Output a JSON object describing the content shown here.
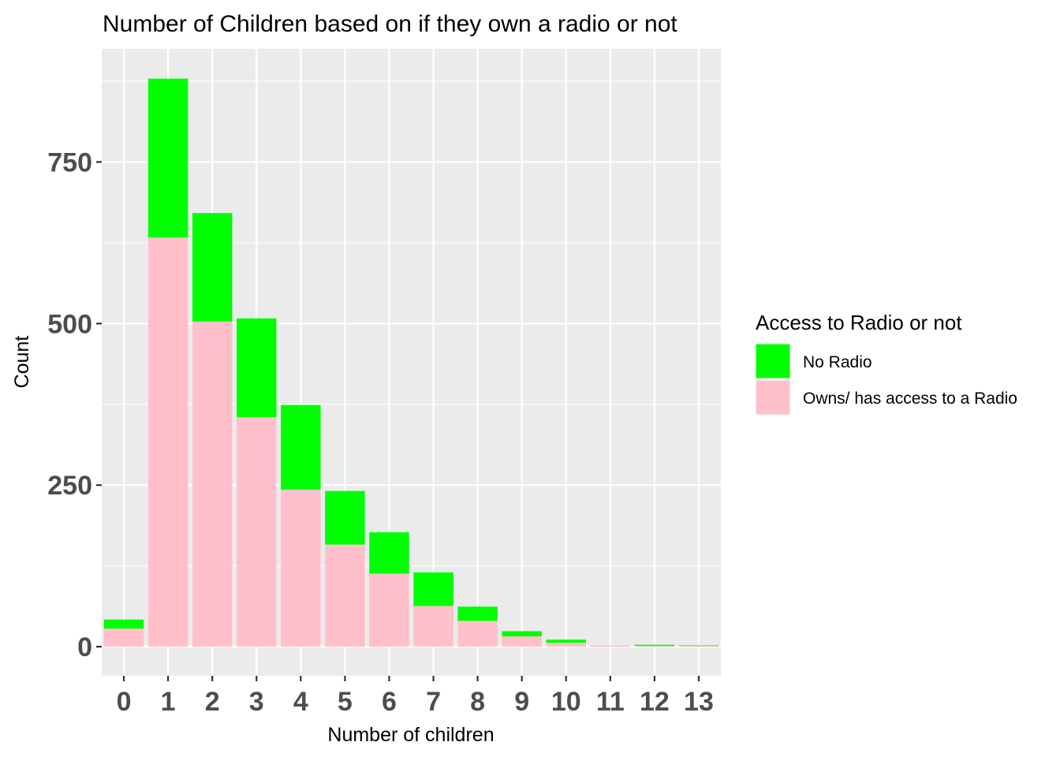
{
  "chart_data": {
    "type": "bar",
    "stacked": true,
    "title": "Number of Children based on if they own a radio or not",
    "xlabel": "Number of children",
    "ylabel": "Count",
    "categories": [
      "0",
      "1",
      "2",
      "3",
      "4",
      "5",
      "6",
      "7",
      "8",
      "9",
      "10",
      "11",
      "12",
      "13"
    ],
    "series": [
      {
        "name": "Owns/ has access to a Radio",
        "color": "#FFC0CB",
        "values": [
          28,
          633,
          503,
          355,
          243,
          158,
          113,
          63,
          40,
          16,
          6,
          2,
          1,
          1
        ]
      },
      {
        "name": "No Radio",
        "color": "#00FF00",
        "values": [
          14,
          246,
          168,
          153,
          131,
          83,
          64,
          52,
          22,
          8,
          5,
          0,
          2,
          1
        ]
      }
    ],
    "ylim": [
      -45,
      925
    ],
    "yticks": [
      0,
      250,
      500,
      750
    ],
    "legend": {
      "title": "Access to Radio or not",
      "position": "right",
      "order": [
        "No Radio",
        "Owns/ has access to a Radio"
      ]
    },
    "panel_background": "#EBEBEB",
    "grid": true
  }
}
